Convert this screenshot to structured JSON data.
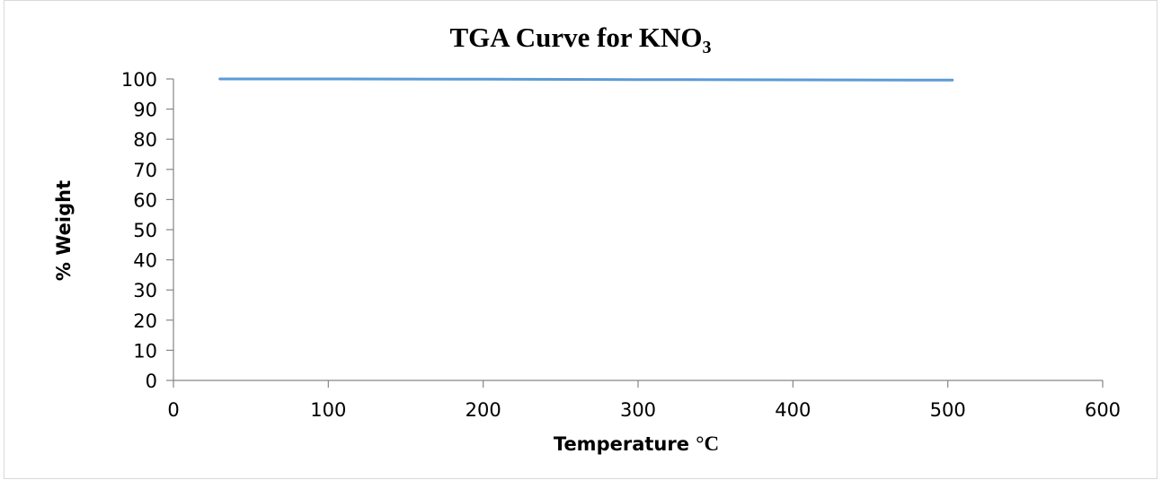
{
  "chart_data": {
    "type": "line",
    "title_main": "TGA Curve for KNO",
    "title_sub": "3",
    "xlabel_main": "Temperature ",
    "xlabel_unit": "°C",
    "ylabel": "% Weight",
    "xlim": [
      0,
      600
    ],
    "ylim": [
      0,
      100
    ],
    "x_ticks": [
      0,
      100,
      200,
      300,
      400,
      500,
      600
    ],
    "y_ticks": [
      0,
      10,
      20,
      30,
      40,
      50,
      60,
      70,
      80,
      90,
      100
    ],
    "grid": false,
    "legend": "none",
    "series": [
      {
        "color": "#5b9bd5",
        "x": [
          30,
          100,
          200,
          300,
          400,
          500,
          503
        ],
        "y": [
          100,
          100,
          99.9,
          99.8,
          99.7,
          99.6,
          99.6
        ]
      }
    ]
  }
}
